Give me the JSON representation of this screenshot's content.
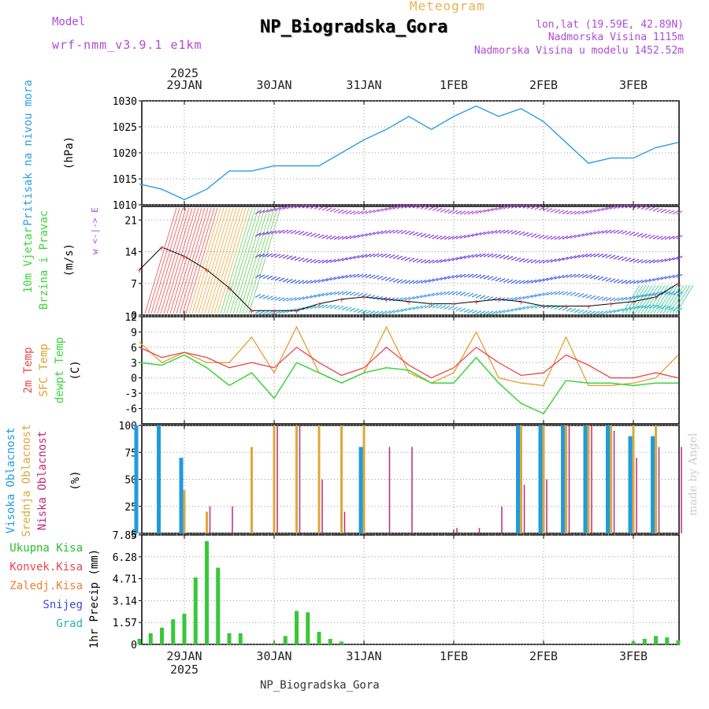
{
  "header": {
    "meteogram": "Meteogram",
    "model_label": "Model",
    "model_name": "wrf-nmm_v3.9.1 e1km",
    "station_title": "NP_Biogradska_Gora",
    "lonlat": "lon,lat (19.59E, 42.89N)",
    "elevation": "Nadmorska Visina 1115m",
    "model_elevation": "Nadmorska Visina u modelu 1452.52m"
  },
  "footer": {
    "station": "NP_Biogradska_Gora",
    "made_by": "made by Angel"
  },
  "colors": {
    "pressure": "#2aa0e0",
    "wind_slow": "#2bc88a",
    "temp2m": "#e8474c",
    "sfc": "#e0a030",
    "dewpoint": "#3bd43b",
    "high_cloud": "#1e9be0",
    "mid_cloud": "#dca83a",
    "low_cloud": "#c0287a",
    "precip": "#38c838",
    "snow": "#4444dd",
    "graupel": "#2ab0b0",
    "convective": "#e8474c",
    "freezing": "#f08030",
    "total": "#28c028"
  },
  "time_axis": {
    "year": "2025",
    "day_labels": [
      "29JAN",
      "30JAN",
      "31JAN",
      "1FEB",
      "2FEB",
      "3FEB"
    ]
  },
  "chart_data": [
    {
      "type": "line",
      "panel": "pressure",
      "ylabel_main": "Pritisak na nivou mora",
      "ylabel_unit": "(hPa)",
      "ylim": [
        1010,
        1030
      ],
      "yticks": [
        "1010",
        "1015",
        "1020",
        "1025",
        "1030"
      ],
      "x": [
        "28JAN12",
        "28JAN18",
        "29JAN00",
        "29JAN06",
        "29JAN12",
        "29JAN18",
        "30JAN00",
        "30JAN06",
        "30JAN12",
        "30JAN18",
        "31JAN00",
        "31JAN06",
        "31JAN12",
        "31JAN18",
        "1FEB00",
        "1FEB06",
        "1FEB12",
        "1FEB18",
        "2FEB00",
        "2FEB06",
        "2FEB12",
        "2FEB18",
        "3FEB00",
        "3FEB06",
        "3FEB12"
      ],
      "series": [
        {
          "values": [
            1014,
            1013,
            1011,
            1013,
            1016.5,
            1016.5,
            1017.5,
            1017.5,
            1017.5,
            1020,
            1022.5,
            1024.5,
            1027,
            1024.5,
            1027,
            1029,
            1027,
            1028.5,
            1026,
            1022,
            1018,
            1019,
            1019,
            1021,
            1022
          ]
        }
      ]
    },
    {
      "type": "line",
      "panel": "wind",
      "ylabel_main": "10m Vjetar",
      "ylabel_sub": "Brzina i Pravac",
      "ylabel_unit": "(m/s)",
      "legend_glyph": "w <-|-> E",
      "ylim": [
        0,
        24
      ],
      "yticks": [
        "0",
        "7",
        "14",
        "21"
      ],
      "x": [
        "28JAN12",
        "28JAN18",
        "29JAN00",
        "29JAN06",
        "29JAN12",
        "29JAN18",
        "30JAN00",
        "30JAN06",
        "30JAN12",
        "30JAN18",
        "31JAN00",
        "31JAN06",
        "31JAN12",
        "31JAN18",
        "1FEB00",
        "1FEB06",
        "1FEB12",
        "1FEB18",
        "2FEB00",
        "2FEB06",
        "2FEB12",
        "2FEB18",
        "3FEB00",
        "3FEB06",
        "3FEB12"
      ],
      "series": [
        {
          "values": [
            10,
            15,
            13,
            10,
            6,
            1,
            1,
            1,
            2.5,
            3.5,
            4,
            3.5,
            3,
            2.5,
            2.5,
            3,
            3.5,
            3,
            2,
            2,
            2,
            2.5,
            3,
            4,
            7
          ]
        }
      ]
    },
    {
      "type": "line",
      "panel": "temperature",
      "ylabel_1": "2m Temp",
      "ylabel_2": "SFC Temp",
      "ylabel_3": "dewpt Temp",
      "ylabel_unit": "(C)",
      "ylim": [
        -9,
        12
      ],
      "yticks": [
        "-6",
        "-3",
        "0",
        "3",
        "6",
        "9",
        "12"
      ],
      "x": [
        "28JAN12",
        "28JAN18",
        "29JAN00",
        "29JAN06",
        "29JAN12",
        "29JAN18",
        "30JAN00",
        "30JAN06",
        "30JAN12",
        "30JAN18",
        "31JAN00",
        "31JAN06",
        "31JAN12",
        "31JAN18",
        "1FEB00",
        "1FEB06",
        "1FEB12",
        "1FEB18",
        "2FEB00",
        "2FEB06",
        "2FEB12",
        "2FEB18",
        "3FEB00",
        "3FEB06",
        "3FEB12"
      ],
      "series": [
        {
          "values": [
            6,
            4,
            5,
            4,
            2,
            3,
            2,
            6,
            3,
            0.5,
            2,
            6,
            2.5,
            0,
            2,
            6,
            3,
            0.5,
            1,
            4.5,
            2.5,
            0,
            0,
            1,
            0
          ]
        },
        {
          "values": [
            7,
            3,
            5,
            3,
            3,
            8,
            1,
            10,
            1,
            -1,
            1,
            10,
            1,
            -1,
            1,
            9,
            0,
            -1,
            -1.5,
            8,
            -1.5,
            -1.5,
            -1,
            0,
            4.5
          ]
        },
        {
          "values": [
            3,
            2.5,
            4.5,
            2,
            -1.5,
            1,
            -4,
            3,
            1,
            -1,
            1,
            2,
            1.5,
            -1,
            -1,
            4,
            -1,
            -5,
            -7,
            -0.5,
            -1,
            -1,
            -1.5,
            -1,
            -1
          ]
        }
      ]
    },
    {
      "type": "bar",
      "panel": "cloud",
      "ylabel_1": "Visoka Oblacnost",
      "ylabel_2": "Srednja Oblacnost",
      "ylabel_3": "Niska Oblacnost",
      "ylabel_unit": "(%)",
      "ylim": [
        0,
        100
      ],
      "yticks": [
        "0",
        "25",
        "50",
        "75",
        "100"
      ],
      "x": [
        "28JAN12",
        "28JAN18",
        "29JAN00",
        "29JAN06",
        "29JAN12",
        "29JAN18",
        "30JAN00",
        "30JAN06",
        "30JAN12",
        "30JAN18",
        "31JAN00",
        "31JAN06",
        "31JAN12",
        "31JAN18",
        "1FEB00",
        "1FEB06",
        "1FEB12",
        "1FEB18",
        "2FEB00",
        "2FEB06",
        "2FEB12",
        "2FEB18",
        "3FEB00",
        "3FEB06",
        "3FEB12"
      ],
      "series": [
        {
          "values": [
            100,
            100,
            70,
            0,
            0,
            0,
            0,
            0,
            0,
            0,
            80,
            0,
            0,
            0,
            0,
            0,
            0,
            100,
            100,
            100,
            100,
            100,
            90,
            90,
            0
          ]
        },
        {
          "values": [
            0,
            0,
            40,
            20,
            0,
            80,
            100,
            100,
            100,
            100,
            100,
            0,
            0,
            0,
            0,
            0,
            0,
            100,
            100,
            100,
            100,
            100,
            100,
            100,
            0
          ]
        },
        {
          "values": [
            0,
            0,
            0,
            25,
            25,
            0,
            100,
            100,
            50,
            20,
            0,
            80,
            80,
            0,
            5,
            5,
            25,
            45,
            50,
            100,
            100,
            95,
            70,
            80,
            80
          ]
        }
      ]
    },
    {
      "type": "bar",
      "panel": "precipitation",
      "legend": [
        "Ukupna Kisa",
        "Konvek.Kisa",
        "Zaledj.Kisa",
        "Snijeg",
        "Grad"
      ],
      "ylabel_unit": "1hr Precip (mm)",
      "ylim": [
        0,
        7.85
      ],
      "yticks": [
        "0",
        "1.57",
        "3.14",
        "4.71",
        "6.28",
        "7.85"
      ],
      "x": [
        "28JAN12",
        "28JAN15",
        "28JAN18",
        "28JAN21",
        "29JAN00",
        "29JAN03",
        "29JAN06",
        "29JAN09",
        "29JAN12",
        "29JAN15",
        "29JAN18",
        "29JAN21",
        "30JAN00",
        "30JAN03",
        "30JAN06",
        "30JAN09",
        "30JAN12",
        "30JAN15",
        "30JAN18",
        "30JAN21",
        "31JAN00",
        "3FEB00",
        "3FEB03",
        "3FEB06",
        "3FEB09",
        "3FEB12"
      ],
      "series": [
        {
          "values": [
            0.4,
            0.8,
            1.2,
            1.8,
            2.2,
            4.8,
            7.4,
            5.5,
            0.8,
            0.8,
            0,
            0,
            0.1,
            0.6,
            2.4,
            2.3,
            0.9,
            0.4,
            0.2,
            0,
            0,
            0.2,
            0.4,
            0.6,
            0.5,
            0.3
          ]
        }
      ]
    }
  ]
}
